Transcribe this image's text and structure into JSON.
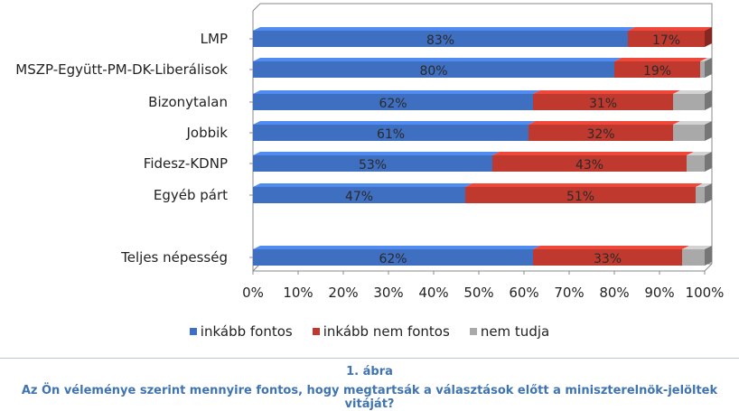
{
  "chart_data": {
    "type": "bar",
    "orientation": "horizontal",
    "stacked": true,
    "percent": true,
    "categories": [
      "LMP",
      "MSZP-Együtt-PM-DK-Liberálisok",
      "Bizonytalan",
      "Jobbik",
      "Fidesz-KDNP",
      "Egyéb párt",
      "Teljes népesség"
    ],
    "series": [
      {
        "name": "inkább fontos",
        "color": "#3f6fc0",
        "values": [
          83,
          80,
          62,
          61,
          53,
          47,
          62
        ],
        "labels": [
          "83%",
          "80%",
          "62%",
          "61%",
          "53%",
          "47%",
          "62%"
        ]
      },
      {
        "name": "inkább nem fontos",
        "color": "#c0392f",
        "values": [
          17,
          19,
          31,
          32,
          43,
          51,
          33
        ],
        "labels": [
          "17%",
          "19%",
          "31%",
          "32%",
          "43%",
          "51%",
          "33%"
        ]
      },
      {
        "name": "nem tudja",
        "color": "#a9a9a9",
        "values": [
          0,
          1,
          7,
          7,
          4,
          2,
          5
        ],
        "labels": []
      }
    ],
    "xlim": [
      0,
      100
    ],
    "xticks": [
      "0%",
      "10%",
      "20%",
      "30%",
      "40%",
      "50%",
      "60%",
      "70%",
      "80%",
      "90%",
      "100%"
    ],
    "legend_position": "bottom",
    "grid": false
  },
  "caption": {
    "number": "1. ábra",
    "title": "Az Ön véleménye szerint mennyire fontos, hogy megtartsák a választások előtt a miniszterelnök-jelöltek vitáját?"
  }
}
